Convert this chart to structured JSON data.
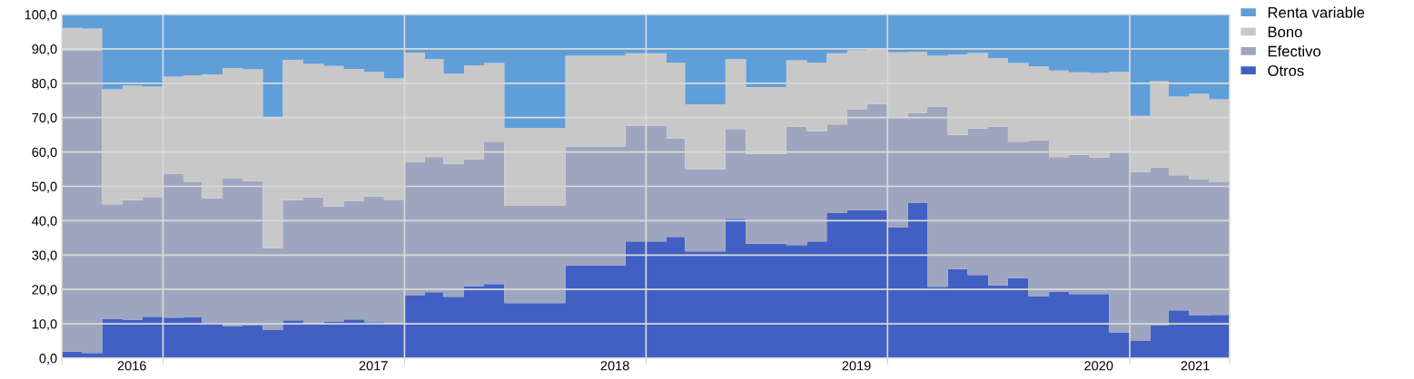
{
  "chart_data": {
    "type": "area",
    "stacked": true,
    "grid": true,
    "legend": "top right",
    "x": [
      "2016-08",
      "2016-09",
      "2016-10",
      "2016-11",
      "2016-12",
      "2017-01",
      "2017-02",
      "2017-03",
      "2017-04",
      "2017-05",
      "2017-06",
      "2017-07",
      "2017-08",
      "2017-09",
      "2017-10",
      "2017-11",
      "2017-12",
      "2018-01",
      "2018-02",
      "2018-03",
      "2018-04",
      "2018-05",
      "2018-06",
      "2018-07",
      "2018-08",
      "2018-09",
      "2018-10",
      "2018-11",
      "2018-12",
      "2019-01",
      "2019-02",
      "2019-03",
      "2019-04",
      "2019-05",
      "2019-06",
      "2019-07",
      "2019-08",
      "2019-09",
      "2019-10",
      "2019-11",
      "2019-12",
      "2020-01",
      "2020-02",
      "2020-03",
      "2020-04",
      "2020-05",
      "2020-06",
      "2020-07",
      "2020-08",
      "2020-09",
      "2020-10",
      "2020-11",
      "2020-12",
      "2021-01",
      "2021-02",
      "2021-03",
      "2021-04",
      "2021-05",
      "2021-06"
    ],
    "xlim": [
      "2016-08-01",
      "2021-06-01"
    ],
    "xticks": [
      {
        "value": "2016-08-01",
        "label": null
      },
      {
        "value": "2017-01-01",
        "label": null
      },
      {
        "value": "2018-01-01",
        "label": null
      },
      {
        "value": "2019-01-01",
        "label": null
      },
      {
        "value": "2020-01-01",
        "label": null
      },
      {
        "value": "2021-01-01",
        "label": null
      },
      {
        "value": "2021-06-01",
        "label": null
      },
      {
        "value": "2016-11-15",
        "label": "2016"
      },
      {
        "value": "2017-11-15",
        "label": "2017"
      },
      {
        "value": "2018-11-15",
        "label": "2018"
      },
      {
        "value": "2019-11-15",
        "label": "2019"
      },
      {
        "value": "2020-11-15",
        "label": "2020"
      },
      {
        "value": "2021-04-10",
        "label": "2021"
      }
    ],
    "ylim": [
      0,
      100
    ],
    "yticks": [
      {
        "value": 0,
        "label": "0,0"
      },
      {
        "value": 10,
        "label": "10,0"
      },
      {
        "value": 20,
        "label": "20,0"
      },
      {
        "value": 30,
        "label": "30,0"
      },
      {
        "value": 40,
        "label": "40,0"
      },
      {
        "value": 50,
        "label": "50,0"
      },
      {
        "value": 60,
        "label": "60,0"
      },
      {
        "value": 70,
        "label": "70,0"
      },
      {
        "value": 80,
        "label": "80,0"
      },
      {
        "value": 90,
        "label": "90,0"
      },
      {
        "value": 100,
        "label": "100,0"
      }
    ],
    "series": [
      {
        "name": "Otros",
        "color": "#4260c3",
        "values": [
          1.9,
          1.5,
          11.5,
          11.2,
          12.1,
          11.8,
          12.0,
          10.4,
          9.3,
          9.5,
          8.2,
          11.0,
          10.0,
          10.7,
          11.3,
          10.5,
          10.1,
          18.2,
          19.2,
          17.9,
          21.0,
          21.6,
          16.0,
          16.0,
          16.0,
          27.0,
          27.0,
          27.0,
          34.0,
          34.0,
          35.3,
          31.1,
          31.1,
          40.6,
          33.3,
          33.3,
          32.9,
          34.0,
          42.2,
          43.1,
          43.1,
          38.0,
          45.1,
          20.8,
          25.9,
          24.2,
          21.2,
          23.3,
          18.1,
          19.4,
          18.7,
          18.7,
          7.5,
          5.0,
          9.5,
          13.9,
          12.4,
          12.6,
          12.6
        ]
      },
      {
        "name": "Efectivo",
        "color": "#9ea6bf",
        "values": [
          87.6,
          88.0,
          33.3,
          34.8,
          34.8,
          41.9,
          39.2,
          36.2,
          43.1,
          42.0,
          23.8,
          35.0,
          36.8,
          33.4,
          34.5,
          36.5,
          36.0,
          38.9,
          39.3,
          38.6,
          36.9,
          41.4,
          28.3,
          28.3,
          28.3,
          34.6,
          34.6,
          34.6,
          33.7,
          33.7,
          28.7,
          23.9,
          23.9,
          26.1,
          26.1,
          26.1,
          34.5,
          32.1,
          25.8,
          29.3,
          30.9,
          32.2,
          26.3,
          52.4,
          39.1,
          42.6,
          46.2,
          39.7,
          45.3,
          39.1,
          40.5,
          39.7,
          52.3,
          49.2,
          46.0,
          39.3,
          39.6,
          38.6,
          38.6
        ]
      },
      {
        "name": "Bono",
        "color": "#c8c8c8",
        "values": [
          6.6,
          6.4,
          33.4,
          33.3,
          32.1,
          28.2,
          31.1,
          36.0,
          32.0,
          32.6,
          38.2,
          40.8,
          38.8,
          40.9,
          38.4,
          36.3,
          35.3,
          31.8,
          28.5,
          26.3,
          27.3,
          22.9,
          22.7,
          22.7,
          22.7,
          26.4,
          26.4,
          26.4,
          21.0,
          21.0,
          22.0,
          18.9,
          18.9,
          20.3,
          19.5,
          19.5,
          19.3,
          19.9,
          20.7,
          17.2,
          15.9,
          18.8,
          17.7,
          14.8,
          23.3,
          22.0,
          19.9,
          22.9,
          21.5,
          25.2,
          24.0,
          24.6,
          23.5,
          16.3,
          25.1,
          22.9,
          24.9,
          24.1,
          24.1
        ]
      },
      {
        "name": "Renta variable",
        "color": "#5f9ed8",
        "values": [
          3.9,
          4.1,
          21.8,
          20.7,
          21.0,
          18.1,
          17.7,
          17.4,
          15.6,
          15.9,
          29.8,
          13.2,
          14.4,
          15.0,
          15.8,
          16.7,
          18.6,
          11.1,
          13.0,
          17.2,
          14.8,
          14.1,
          33.0,
          33.0,
          33.0,
          12.0,
          12.0,
          12.0,
          11.3,
          11.3,
          14.0,
          26.1,
          26.1,
          13.0,
          21.1,
          21.1,
          13.3,
          14.0,
          11.3,
          10.4,
          10.1,
          11.0,
          10.9,
          12.0,
          11.7,
          11.2,
          12.7,
          14.1,
          15.1,
          16.3,
          16.8,
          17.0,
          16.7,
          29.5,
          19.4,
          23.9,
          23.1,
          24.7,
          24.7
        ]
      }
    ]
  }
}
